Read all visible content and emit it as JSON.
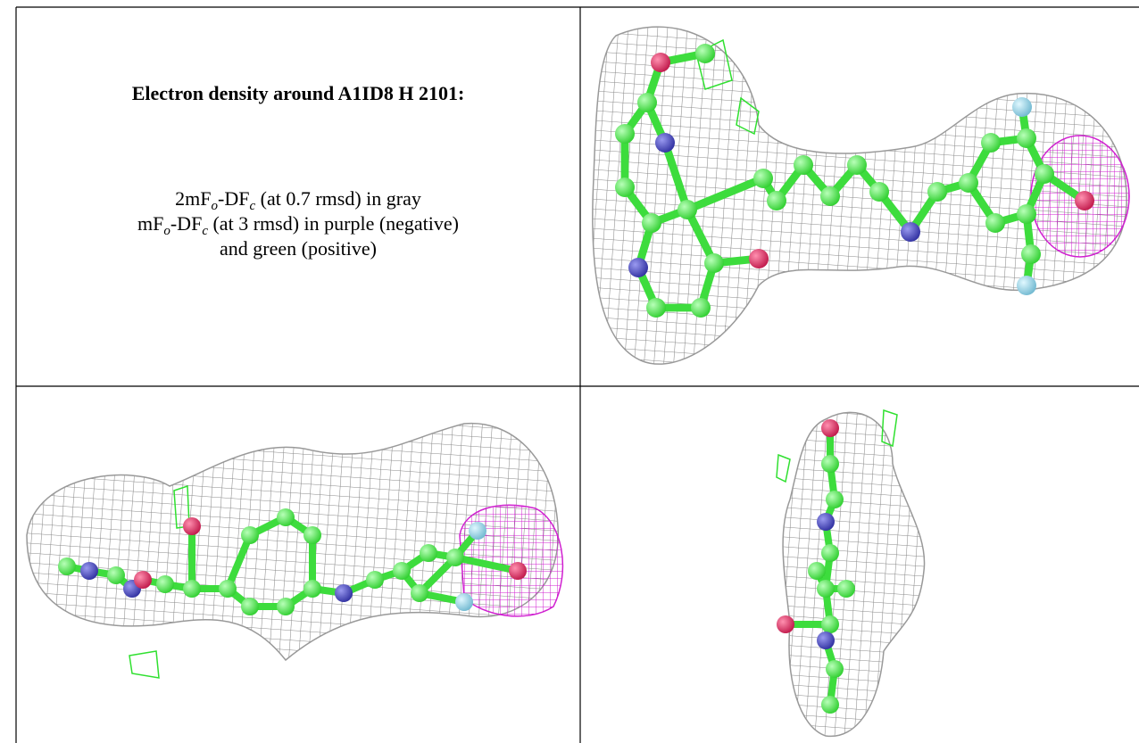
{
  "caption": {
    "title": "Electron density around A1ID8 H 2101:",
    "lines": [
      [
        "2mF",
        "o",
        "-DF",
        "c",
        " (at 0.7 rmsd) in gray"
      ],
      [
        "mF",
        "o",
        "-DF",
        "c",
        " (at 3 rmsd) in purple (negative)"
      ],
      [
        "and green (positive)"
      ]
    ]
  }
}
